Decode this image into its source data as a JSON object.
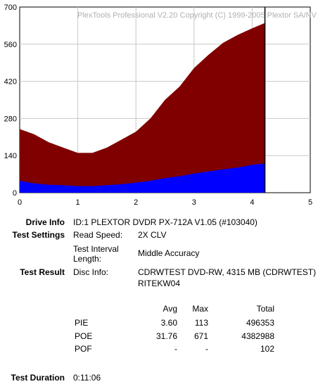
{
  "chart_data": {
    "type": "bar",
    "watermark": "PlexTools Professional V2.20 Copyright (C) 1999-2005 Plextor SA/NV",
    "x_ticks": [
      "0",
      "1",
      "2",
      "3",
      "4",
      "5"
    ],
    "y_ticks": [
      "0",
      "140",
      "280",
      "420",
      "560",
      "700"
    ],
    "xlim": [
      0,
      5
    ],
    "ylim": [
      0,
      700
    ],
    "grid": true,
    "x_end": 4.22,
    "series": [
      {
        "color": "#800000",
        "x": [
          0,
          0.25,
          0.5,
          0.75,
          1.0,
          1.25,
          1.5,
          1.75,
          2.0,
          2.25,
          2.5,
          2.75,
          3.0,
          3.25,
          3.5,
          3.75,
          4.0,
          4.22
        ],
        "values": [
          240,
          220,
          190,
          170,
          150,
          150,
          170,
          200,
          230,
          280,
          350,
          400,
          470,
          520,
          565,
          595,
          620,
          640
        ]
      },
      {
        "color": "#0000ff",
        "x": [
          0,
          0.25,
          0.5,
          0.75,
          1.0,
          1.25,
          1.5,
          1.75,
          2.0,
          2.25,
          2.5,
          2.75,
          3.0,
          3.25,
          3.5,
          3.75,
          4.0,
          4.22
        ],
        "values": [
          45,
          35,
          30,
          28,
          25,
          25,
          28,
          32,
          38,
          45,
          55,
          62,
          72,
          80,
          88,
          95,
          105,
          110
        ]
      }
    ]
  },
  "info": {
    "drive_label": "Drive Info",
    "drive_value": "ID:1 PLEXTOR DVDR PX-712A V1.05 (#103040)",
    "settings_label": "Test Settings",
    "read_speed_label": "Read Speed:",
    "read_speed_value": "2X CLV",
    "interval_label_1": "Test Interval",
    "interval_label_2": "Length:",
    "interval_value": "Middle Accuracy",
    "result_label": "Test Result",
    "disc_label": "Disc Info:",
    "disc_value_1": "CDRWTEST DVD-RW, 4315 MB (CDRWTEST)",
    "disc_value_2": "RITEKW04",
    "duration_label": "Test Duration",
    "duration_value": "0:11:06"
  },
  "stats": {
    "headers": {
      "avg": "Avg",
      "max": "Max",
      "total": "Total"
    },
    "rows": [
      {
        "name": "PIE",
        "avg": "3.60",
        "max": "113",
        "total": "496353"
      },
      {
        "name": "POE",
        "avg": "31.76",
        "max": "671",
        "total": "4382988"
      },
      {
        "name": "POF",
        "avg": "-",
        "max": "-",
        "total": "102"
      }
    ]
  }
}
